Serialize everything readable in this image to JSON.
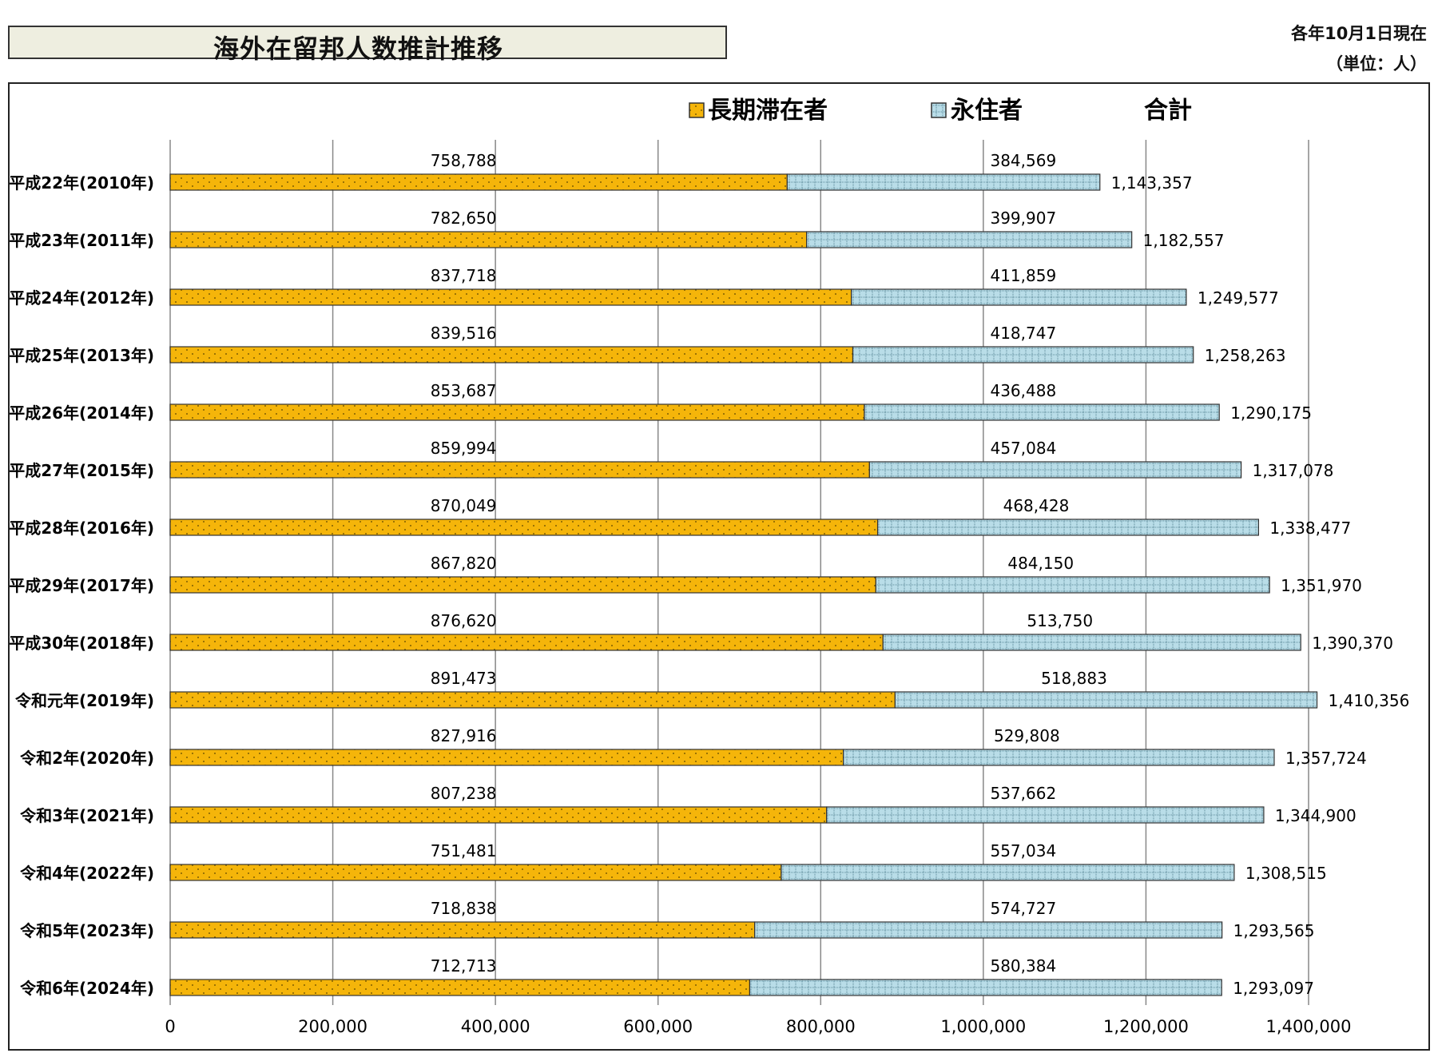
{
  "title": "海外在留邦人数推計推移",
  "note_date": "各年10月1日現在",
  "note_unit": "（単位：人）",
  "colors": {
    "long_term": "#f5b50a",
    "permanent": "#b9dde8",
    "grid": "#888888",
    "frame": "#222222"
  },
  "chart_data": {
    "type": "bar",
    "orientation": "horizontal",
    "stacked": true,
    "legend_position": "top-right",
    "legend": [
      "長期滞在者",
      "永住者",
      "合計"
    ],
    "categories": [
      "平成22年(2010年)",
      "平成23年(2011年)",
      "平成24年(2012年)",
      "平成25年(2013年)",
      "平成26年(2014年)",
      "平成27年(2015年)",
      "平成28年(2016年)",
      "平成29年(2017年)",
      "平成30年(2018年)",
      "令和元年(2019年)",
      "令和2年(2020年)",
      "令和3年(2021年)",
      "令和4年(2022年)",
      "令和5年(2023年)",
      "令和6年(2024年)"
    ],
    "series": [
      {
        "name": "長期滞在者",
        "values": [
          758788,
          782650,
          837718,
          839516,
          853687,
          859994,
          870049,
          867820,
          876620,
          891473,
          827916,
          807238,
          751481,
          718838,
          712713
        ],
        "labels": [
          "758,788",
          "782,650",
          "837,718",
          "839,516",
          "853,687",
          "859,994",
          "870,049",
          "867,820",
          "876,620",
          "891,473",
          "827,916",
          "807,238",
          "751,481",
          "718,838",
          "712,713"
        ]
      },
      {
        "name": "永住者",
        "values": [
          384569,
          399907,
          411859,
          418747,
          436488,
          457084,
          468428,
          484150,
          513750,
          518883,
          529808,
          537662,
          557034,
          574727,
          580384
        ],
        "labels": [
          "384,569",
          "399,907",
          "411,859",
          "418,747",
          "436,488",
          "457,084",
          "468,428",
          "484,150",
          "513,750",
          "518,883",
          "529,808",
          "537,662",
          "557,034",
          "574,727",
          "580,384"
        ]
      }
    ],
    "totals": [
      1143357,
      1182557,
      1249577,
      1258263,
      1290175,
      1317078,
      1338477,
      1351970,
      1390370,
      1410356,
      1357724,
      1344900,
      1308515,
      1293565,
      1293097
    ],
    "total_labels": [
      "1,143,357",
      "1,182,557",
      "1,249,577",
      "1,258,263",
      "1,290,175",
      "1,317,078",
      "1,338,477",
      "1,351,970",
      "1,390,370",
      "1,410,356",
      "1,357,724",
      "1,344,900",
      "1,308,515",
      "1,293,565",
      "1,293,097"
    ],
    "xlim": [
      0,
      1400000
    ],
    "xticks": [
      0,
      200000,
      400000,
      600000,
      800000,
      1000000,
      1200000,
      1400000
    ],
    "xtick_labels": [
      "0",
      "200,000",
      "400,000",
      "600,000",
      "800,000",
      "1,000,000",
      "1,200,000",
      "1,400,000"
    ],
    "grid": true
  }
}
